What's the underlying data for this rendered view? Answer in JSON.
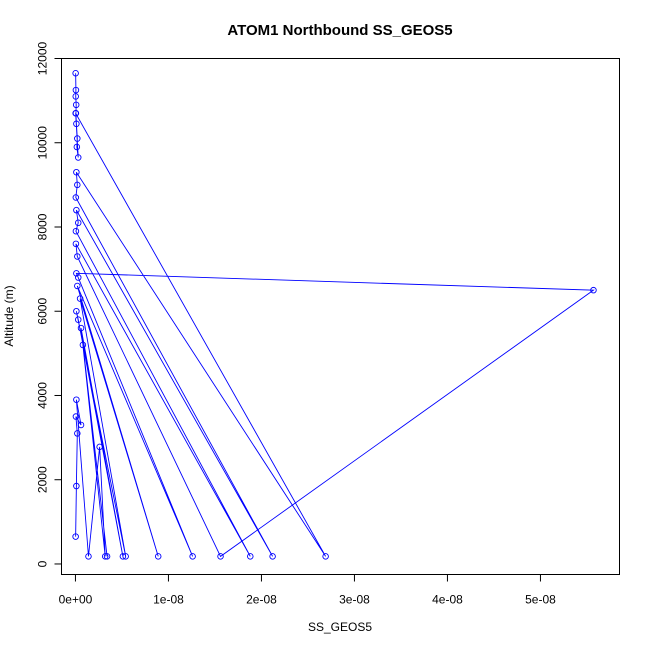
{
  "chart_data": {
    "type": "line",
    "title": "ATOM1 Northbound SS_GEOS5",
    "xlabel": "SS_GEOS5",
    "ylabel": "Altitude (m)",
    "xlim": [
      -1.5e-09,
      5.85e-08
    ],
    "ylim": [
      -250,
      12000
    ],
    "x_ticks": [
      0,
      1e-08,
      2e-08,
      3e-08,
      4e-08,
      5e-08
    ],
    "x_tick_labels": [
      "0e+00",
      "1e-08",
      "2e-08",
      "3e-08",
      "4e-08",
      "5e-08"
    ],
    "y_ticks": [
      0,
      2000,
      4000,
      6000,
      8000,
      10000,
      12000
    ],
    "y_tick_labels": [
      "0",
      "2000",
      "4000",
      "6000",
      "8000",
      "10000",
      "12000"
    ],
    "grid": false,
    "legend": "none",
    "series_color": "#0000ff",
    "series": [
      {
        "marker": "open-circle",
        "x": [
          2e-11,
          5e-11,
          3e-11,
          8e-11,
          5e-11,
          1e-10,
          2e-10,
          1.5e-10,
          3e-10,
          2e-11,
          2.69e-08,
          1e-10,
          2e-10,
          4e-11,
          2.12e-08,
          1e-10,
          3e-10,
          5e-11,
          1.88e-08,
          5e-11,
          2e-10,
          1.56e-08,
          5.57e-08,
          1e-10,
          3e-10,
          1.26e-08,
          2e-10,
          8.9e-09,
          5e-10,
          5.4e-09,
          1e-10,
          3e-10,
          5.1e-09,
          6e-10,
          3.4e-09,
          8e-10,
          3.2e-09,
          2.6e-09,
          1.4e-09,
          1e-10,
          6e-10,
          5e-11,
          2e-10,
          1e-10,
          2e-11
        ],
        "y": [
          11650,
          11250,
          11100,
          10900,
          10700,
          10450,
          10100,
          9900,
          9650,
          10700,
          180,
          9300,
          9000,
          8700,
          180,
          8400,
          8100,
          7900,
          180,
          7600,
          7300,
          180,
          6500,
          6900,
          6800,
          180,
          6600,
          180,
          6300,
          180,
          6000,
          5800,
          180,
          5600,
          180,
          5200,
          180,
          2780,
          180,
          3900,
          3300,
          3500,
          3100,
          1850,
          650
        ]
      }
    ]
  }
}
